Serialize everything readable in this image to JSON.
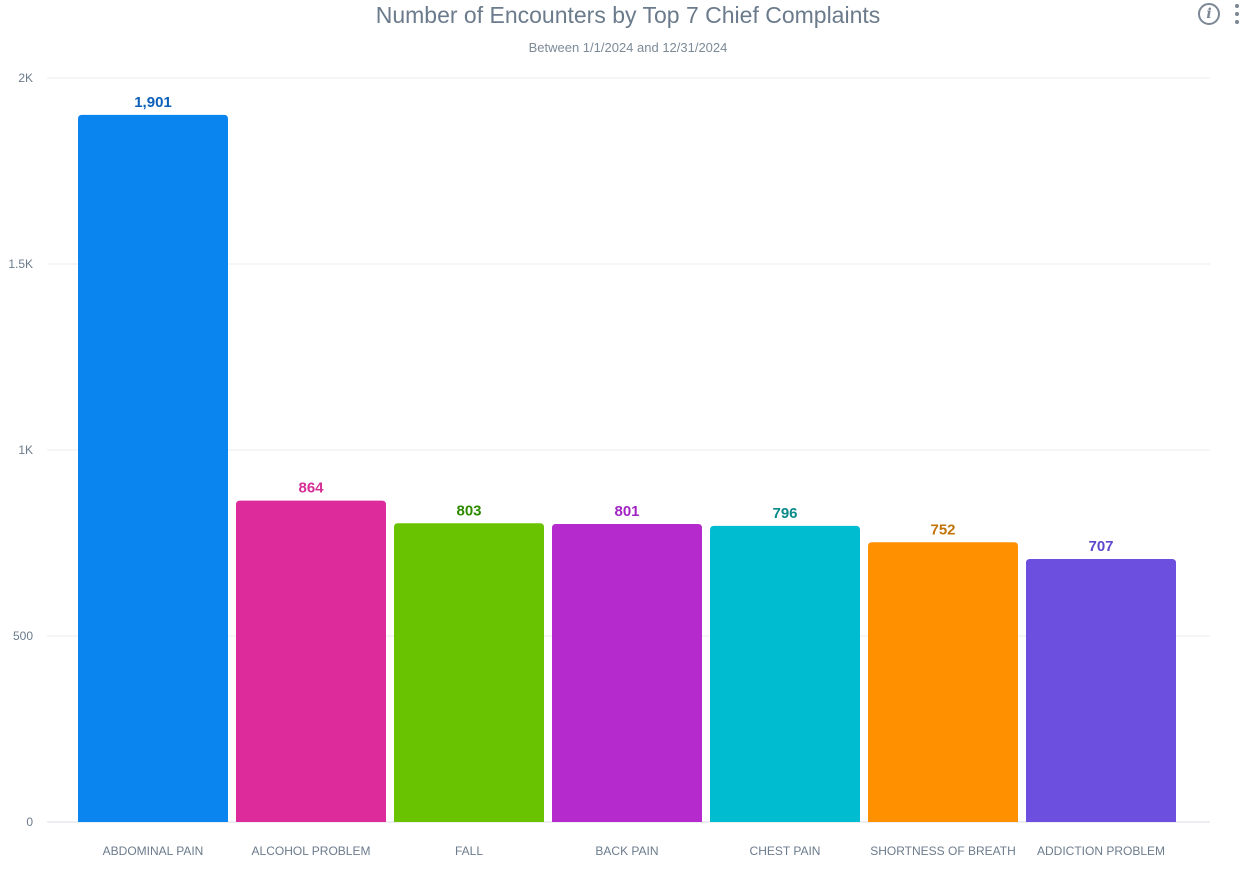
{
  "chart_data": {
    "type": "bar",
    "title": "Number of Encounters by Top 7 Chief Complaints",
    "subtitle": "Between 1/1/2024 and 12/31/2024",
    "xlabel": "",
    "ylabel": "",
    "ylim": [
      0,
      2000
    ],
    "grid": true,
    "yticks": [
      {
        "value": 0,
        "label": "0"
      },
      {
        "value": 500,
        "label": "500"
      },
      {
        "value": 1000,
        "label": "1K"
      },
      {
        "value": 1500,
        "label": "1.5K"
      },
      {
        "value": 2000,
        "label": "2K"
      }
    ],
    "categories": [
      "ABDOMINAL PAIN",
      "ALCOHOL PROBLEM",
      "FALL",
      "BACK PAIN",
      "CHEST PAIN",
      "SHORTNESS OF BREATH",
      "ADDICTION PROBLEM"
    ],
    "values": [
      1901,
      864,
      803,
      801,
      796,
      752,
      707
    ],
    "value_labels": [
      "1,901",
      "864",
      "803",
      "801",
      "796",
      "752",
      "707"
    ],
    "bar_colors": [
      "#0a84ee",
      "#de2b9c",
      "#69c300",
      "#b42acc",
      "#00bcd1",
      "#ff9100",
      "#6d4fe0"
    ],
    "label_colors": [
      "#0b5fb8",
      "#d42f96",
      "#2e8a00",
      "#a324c4",
      "#0b8a8a",
      "#c2740a",
      "#5e47cf"
    ]
  },
  "icons": {
    "info": "info-icon",
    "menu": "more-vertical-icon"
  },
  "info_glyph": "i"
}
